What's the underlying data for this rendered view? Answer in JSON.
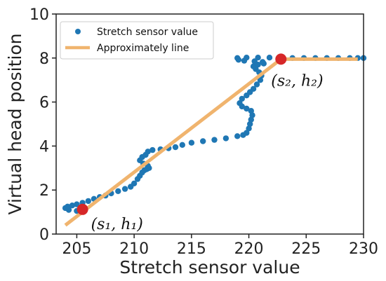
{
  "chart_data": {
    "type": "scatter",
    "xlabel": "Stretch sensor value",
    "ylabel": "Virtual head position",
    "xlim": [
      203.2,
      230
    ],
    "ylim": [
      0,
      10
    ],
    "xticks": [
      205,
      210,
      215,
      220,
      225,
      230
    ],
    "yticks": [
      0,
      2,
      4,
      6,
      8,
      10
    ],
    "grid": false,
    "legend": {
      "placement": "top-left",
      "entries": [
        "Stretch sensor value",
        "Approximately line"
      ]
    },
    "colors": {
      "scatter": "#1f77b4",
      "line": "#f0b46e",
      "marker": "#d62728"
    },
    "series": [
      {
        "name": "Stretch sensor value",
        "type": "scatter",
        "points": [
          [
            205.0,
            1.05
          ],
          [
            204.3,
            1.1
          ],
          [
            204.0,
            1.18
          ],
          [
            204.2,
            1.25
          ],
          [
            204.6,
            1.3
          ],
          [
            205.0,
            1.35
          ],
          [
            205.5,
            1.42
          ],
          [
            206.0,
            1.5
          ],
          [
            206.5,
            1.6
          ],
          [
            207.0,
            1.68
          ],
          [
            207.5,
            1.75
          ],
          [
            208.0,
            1.85
          ],
          [
            208.6,
            1.95
          ],
          [
            209.2,
            2.05
          ],
          [
            209.7,
            2.15
          ],
          [
            210.0,
            2.3
          ],
          [
            210.3,
            2.5
          ],
          [
            210.5,
            2.65
          ],
          [
            210.7,
            2.8
          ],
          [
            210.9,
            2.9
          ],
          [
            211.1,
            2.95
          ],
          [
            211.3,
            3.0
          ],
          [
            211.2,
            3.1
          ],
          [
            210.8,
            3.2
          ],
          [
            210.5,
            3.35
          ],
          [
            210.7,
            3.5
          ],
          [
            211.0,
            3.6
          ],
          [
            211.2,
            3.75
          ],
          [
            211.6,
            3.82
          ],
          [
            212.3,
            3.85
          ],
          [
            213.0,
            3.9
          ],
          [
            213.6,
            3.95
          ],
          [
            214.2,
            4.05
          ],
          [
            215.0,
            4.15
          ],
          [
            216.0,
            4.22
          ],
          [
            217.0,
            4.28
          ],
          [
            218.0,
            4.35
          ],
          [
            219.0,
            4.45
          ],
          [
            219.5,
            4.5
          ],
          [
            219.8,
            4.6
          ],
          [
            220.0,
            4.8
          ],
          [
            220.1,
            5.0
          ],
          [
            220.2,
            5.2
          ],
          [
            220.3,
            5.4
          ],
          [
            220.2,
            5.6
          ],
          [
            219.8,
            5.7
          ],
          [
            219.4,
            5.8
          ],
          [
            219.2,
            5.95
          ],
          [
            219.4,
            6.15
          ],
          [
            219.8,
            6.3
          ],
          [
            220.1,
            6.45
          ],
          [
            220.4,
            6.6
          ],
          [
            220.7,
            6.8
          ],
          [
            221.0,
            7.0
          ],
          [
            221.1,
            7.2
          ],
          [
            220.9,
            7.35
          ],
          [
            220.6,
            7.5
          ],
          [
            220.4,
            7.62
          ],
          [
            220.8,
            7.7
          ],
          [
            221.3,
            7.75
          ],
          [
            221.2,
            7.82
          ],
          [
            220.5,
            7.85
          ],
          [
            219.6,
            7.88
          ],
          [
            219.1,
            7.92
          ],
          [
            219.0,
            8.0
          ],
          [
            219.8,
            8.02
          ],
          [
            220.8,
            8.02
          ],
          [
            221.8,
            8.02
          ],
          [
            222.8,
            8.0
          ],
          [
            223.8,
            8.0
          ],
          [
            224.8,
            8.0
          ],
          [
            225.8,
            8.0
          ],
          [
            226.8,
            8.0
          ],
          [
            227.8,
            8.0
          ],
          [
            228.8,
            8.0
          ],
          [
            229.5,
            8.0
          ],
          [
            230.0,
            8.0
          ]
        ]
      },
      {
        "name": "Approximately line",
        "type": "line",
        "points": [
          [
            204.0,
            0.4
          ],
          [
            222.8,
            7.95
          ],
          [
            229.5,
            7.95
          ]
        ]
      }
    ],
    "annotations": [
      {
        "label": "(s₁, h₁)",
        "x": 205.5,
        "y": 1.12
      },
      {
        "label": "(s₂, h₂)",
        "x": 222.8,
        "y": 7.95
      }
    ]
  }
}
